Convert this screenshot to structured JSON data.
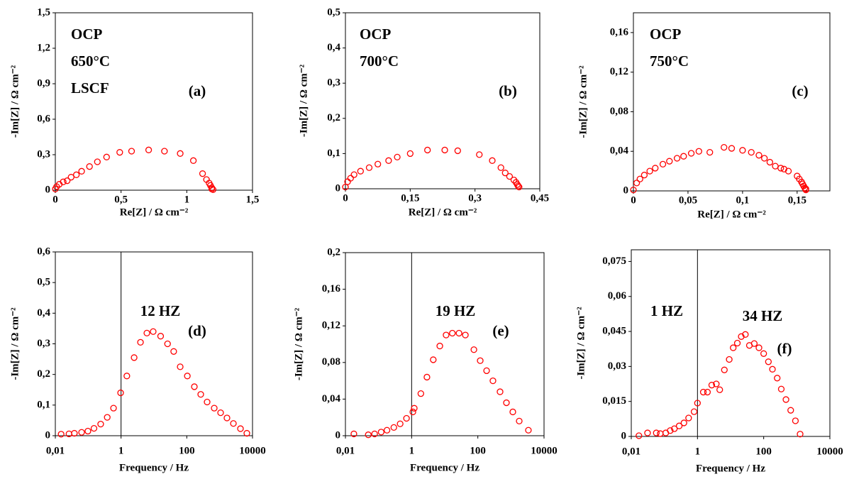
{
  "chart_data": [
    {
      "type": "scatter",
      "xlabel": "Re[Z] / Ω cm⁻²",
      "ylabel": "-Im[Z] / Ω cm⁻²",
      "annotations": [
        "OCP",
        "650°C",
        "LSCF",
        "(a)"
      ],
      "xlim": [
        0,
        1.5
      ],
      "ylim": [
        0,
        1.5
      ],
      "xticks": [
        0,
        {
          "value": 0.5,
          "label": "0,5"
        },
        1,
        {
          "value": 1.5,
          "label": "1,5"
        }
      ],
      "yticks": [
        0,
        {
          "value": 0.3,
          "label": "0,3"
        },
        {
          "value": 0.6,
          "label": "0,6"
        },
        {
          "value": 0.9,
          "label": "0,9"
        },
        {
          "value": 1.2,
          "label": "1,2"
        },
        {
          "value": 1.5,
          "label": "1,5"
        }
      ],
      "series": [
        {
          "color": "#ff0000",
          "x": [
            0,
            0.01,
            0.03,
            0.06,
            0.09,
            0.12,
            0.16,
            0.2,
            0.26,
            0.32,
            0.39,
            0.49,
            0.58,
            0.71,
            0.83,
            0.95,
            1.05,
            1.12,
            1.15,
            1.17,
            1.18,
            1.19,
            1.19,
            1.2
          ],
          "values": [
            0.01,
            0.03,
            0.05,
            0.07,
            0.08,
            0.11,
            0.13,
            0.16,
            0.2,
            0.24,
            0.28,
            0.32,
            0.33,
            0.34,
            0.33,
            0.31,
            0.25,
            0.14,
            0.09,
            0.06,
            0.04,
            0.02,
            0.01,
            0.005
          ]
        }
      ]
    },
    {
      "type": "scatter",
      "xlabel": "Re[Z] / Ω cm⁻²",
      "ylabel": "-Im[Z] / Ω cm⁻²",
      "annotations": [
        "OCP",
        "700°C",
        "(b)"
      ],
      "xlim": [
        0,
        0.45
      ],
      "ylim": [
        0,
        0.5
      ],
      "xticks": [
        0,
        {
          "value": 0.15,
          "label": "0,15"
        },
        {
          "value": 0.3,
          "label": "0,3"
        },
        {
          "value": 0.45,
          "label": "0,45"
        }
      ],
      "yticks": [
        0,
        {
          "value": 0.1,
          "label": "0,1"
        },
        {
          "value": 0.2,
          "label": "0,2"
        },
        {
          "value": 0.3,
          "label": "0,3"
        },
        {
          "value": 0.4,
          "label": "0,4"
        },
        {
          "value": 0.5,
          "label": "0,5"
        }
      ],
      "series": [
        {
          "color": "#ff0000",
          "x": [
            0,
            0.005,
            0.012,
            0.02,
            0.035,
            0.055,
            0.075,
            0.1,
            0.12,
            0.15,
            0.19,
            0.23,
            0.26,
            0.31,
            0.34,
            0.36,
            0.37,
            0.38,
            0.39,
            0.395,
            0.398,
            0.4,
            0.402
          ],
          "values": [
            0.005,
            0.02,
            0.03,
            0.04,
            0.05,
            0.06,
            0.07,
            0.08,
            0.09,
            0.1,
            0.11,
            0.11,
            0.108,
            0.097,
            0.08,
            0.06,
            0.045,
            0.035,
            0.025,
            0.018,
            0.012,
            0.008,
            0.005
          ]
        }
      ]
    },
    {
      "type": "scatter",
      "xlabel": "Re[Z] / Ω cm⁻²",
      "ylabel": "-Im[Z] / Ω cm⁻²",
      "annotations": [
        "OCP",
        "750°C",
        "(c)"
      ],
      "xlim": [
        0,
        0.18
      ],
      "ylim": [
        0,
        0.18
      ],
      "xticks": [
        0,
        {
          "value": 0.05,
          "label": "0,05"
        },
        {
          "value": 0.1,
          "label": "0,1"
        },
        {
          "value": 0.15,
          "label": "0,15"
        }
      ],
      "yticks": [
        0,
        {
          "value": 0.04,
          "label": "0,04"
        },
        {
          "value": 0.08,
          "label": "0,08"
        },
        {
          "value": 0.12,
          "label": "0,12"
        },
        {
          "value": 0.16,
          "label": "0,16"
        }
      ],
      "series": [
        {
          "color": "#ff0000",
          "x": [
            0,
            0.003,
            0.006,
            0.01,
            0.015,
            0.02,
            0.027,
            0.033,
            0.04,
            0.046,
            0.053,
            0.06,
            0.07,
            0.083,
            0.09,
            0.1,
            0.108,
            0.115,
            0.12,
            0.125,
            0.13,
            0.135,
            0.138,
            0.142,
            0.15,
            0.152,
            0.154,
            0.155,
            0.156,
            0.157,
            0.158,
            0.158
          ],
          "values": [
            0.001,
            0.008,
            0.012,
            0.016,
            0.02,
            0.023,
            0.027,
            0.03,
            0.033,
            0.035,
            0.038,
            0.04,
            0.039,
            0.044,
            0.043,
            0.041,
            0.039,
            0.036,
            0.033,
            0.029,
            0.025,
            0.023,
            0.022,
            0.02,
            0.015,
            0.012,
            0.009,
            0.007,
            0.005,
            0.003,
            0.002,
            0.001
          ]
        }
      ]
    },
    {
      "type": "scatter",
      "xlabel": "Frequency / Hz",
      "ylabel": "-Im[Z] / Ω cm⁻²",
      "xscale": "log",
      "y_axis_at": 1,
      "annotations": [
        "12 HZ",
        "(d)"
      ],
      "xlim": [
        0.01,
        10000
      ],
      "ylim": [
        0,
        0.6
      ],
      "xticks": [
        {
          "value": 0.01,
          "label": "0,01"
        },
        1,
        100,
        10000
      ],
      "yticks": [
        0,
        {
          "value": 0.1,
          "label": "0,1"
        },
        {
          "value": 0.2,
          "label": "0,2"
        },
        {
          "value": 0.3,
          "label": "0,3"
        },
        {
          "value": 0.4,
          "label": "0,4"
        },
        {
          "value": 0.5,
          "label": "0,5"
        },
        {
          "value": 0.6,
          "label": "0,6"
        }
      ],
      "series": [
        {
          "color": "#ff0000",
          "x": [
            0.015,
            0.026,
            0.038,
            0.063,
            0.098,
            0.15,
            0.24,
            0.38,
            0.59,
            0.97,
            1.5,
            2.5,
            3.9,
            6.1,
            9.5,
            16,
            26,
            40,
            63,
            104,
            170,
            266,
            416,
            684,
            1070,
            1670,
            2620,
            4300,
            6730
          ],
          "values": [
            0.005,
            0.006,
            0.008,
            0.011,
            0.015,
            0.024,
            0.038,
            0.06,
            0.09,
            0.14,
            0.195,
            0.255,
            0.305,
            0.335,
            0.34,
            0.325,
            0.3,
            0.275,
            0.225,
            0.195,
            0.16,
            0.135,
            0.11,
            0.09,
            0.075,
            0.058,
            0.04,
            0.023,
            0.008
          ]
        }
      ]
    },
    {
      "type": "scatter",
      "xlabel": "Frequency / Hz",
      "ylabel": "-Im[Z] / Ω cm⁻²",
      "xscale": "log",
      "y_axis_at": 1,
      "annotations": [
        "19 HZ",
        "(e)"
      ],
      "xlim": [
        0.01,
        10000
      ],
      "ylim": [
        0,
        0.2
      ],
      "xticks": [
        {
          "value": 0.01,
          "label": "0,01"
        },
        1,
        100,
        10000
      ],
      "yticks": [
        0,
        {
          "value": 0.04,
          "label": "0,04"
        },
        {
          "value": 0.08,
          "label": "0,08"
        },
        {
          "value": 0.12,
          "label": "0,12"
        },
        {
          "value": 0.16,
          "label": "0,16"
        },
        {
          "value": 0.2,
          "label": "0,2"
        }
      ],
      "series": [
        {
          "color": "#ff0000",
          "x": [
            0.018,
            0.049,
            0.076,
            0.12,
            0.18,
            0.29,
            0.45,
            0.7,
            1.09,
            1.2,
            1.9,
            2.9,
            4.5,
            7.1,
            11,
            17,
            27,
            42,
            76,
            118,
            184,
            286,
            469,
            731,
            1140,
            1780,
            3370
          ],
          "values": [
            0.002,
            0.001,
            0.002,
            0.004,
            0.006,
            0.009,
            0.013,
            0.019,
            0.026,
            0.03,
            0.046,
            0.064,
            0.083,
            0.098,
            0.11,
            0.112,
            0.112,
            0.11,
            0.094,
            0.082,
            0.071,
            0.06,
            0.048,
            0.036,
            0.026,
            0.016,
            0.006
          ]
        }
      ]
    },
    {
      "type": "scatter",
      "xlabel": "Frequency / Hz",
      "ylabel": "-Im[Z] / Ω cm⁻²",
      "xscale": "log",
      "y_axis_at": 1,
      "annotations": [
        "1 HZ",
        "34 HZ",
        "(f)"
      ],
      "xlim": [
        0.01,
        10000
      ],
      "ylim": [
        0,
        0.08
      ],
      "xticks": [
        {
          "value": 0.01,
          "label": "0,01"
        },
        1,
        100,
        10000
      ],
      "yticks": [
        0,
        {
          "value": 0.015,
          "label": "0,015"
        },
        {
          "value": 0.03,
          "label": "0,03"
        },
        {
          "value": 0.045,
          "label": "0,045"
        },
        {
          "value": 0.06,
          "label": "0,06"
        },
        {
          "value": 0.075,
          "label": "0,075"
        }
      ],
      "series": [
        {
          "color": "#ff0000",
          "x": [
            0.017,
            0.031,
            0.057,
            0.075,
            0.11,
            0.15,
            0.2,
            0.28,
            0.39,
            0.54,
            0.79,
            1,
            1.5,
            2,
            2.7,
            3.7,
            4.7,
            6.5,
            9.1,
            12,
            16,
            21,
            28,
            37,
            52,
            72,
            100,
            139,
            184,
            256,
            340,
            471,
            655,
            910,
            1260
          ],
          "values": [
            0.0003,
            0.0015,
            0.0015,
            0.0012,
            0.0015,
            0.0025,
            0.0033,
            0.0045,
            0.0058,
            0.0079,
            0.0106,
            0.0143,
            0.019,
            0.019,
            0.022,
            0.0225,
            0.02,
            0.0285,
            0.033,
            0.038,
            0.04,
            0.0428,
            0.0437,
            0.039,
            0.0398,
            0.038,
            0.0355,
            0.032,
            0.0288,
            0.025,
            0.0203,
            0.0158,
            0.0112,
            0.0067,
            0.001
          ]
        }
      ]
    }
  ]
}
